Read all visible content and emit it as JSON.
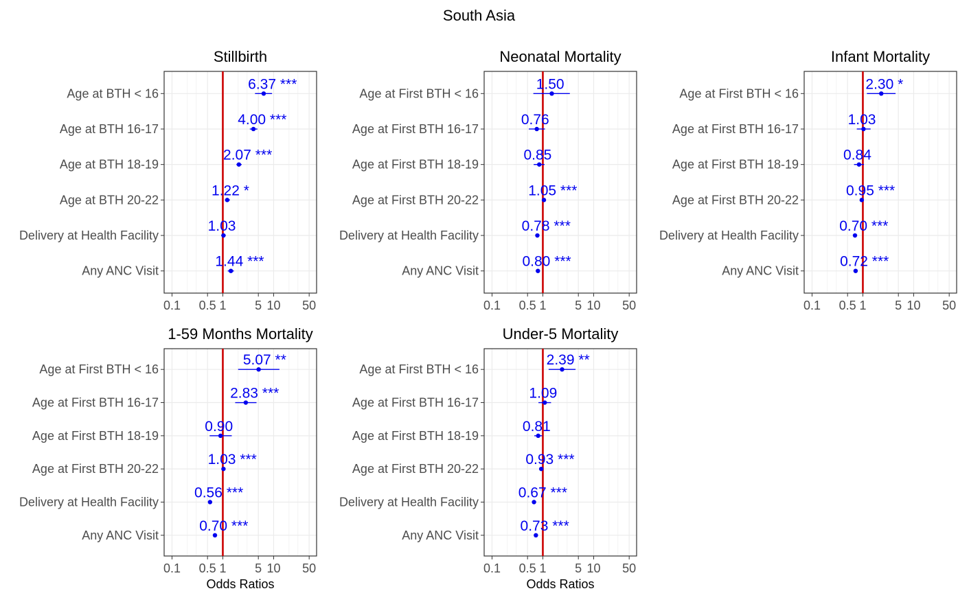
{
  "figure_title": "South Asia",
  "x_axis_label": "Odds Ratios",
  "colors": {
    "reference_line": "#cc0000",
    "estimate": "#0000ee",
    "grid": "#ebebeb",
    "text": "#4d4d4d"
  },
  "chart_data": [
    {
      "type": "scatter",
      "title": "Stillbirth",
      "xscale": "log",
      "xticks": [
        "0.1",
        "0.5",
        "1",
        "5",
        "10",
        "50"
      ],
      "reference_value": 1,
      "xlabel": "",
      "rows": [
        {
          "label": "Age at BTH < 16",
          "or": 6.37,
          "lo": 4.3,
          "hi": 9.3,
          "text": "6.37 ***"
        },
        {
          "label": "Age at BTH 16-17",
          "or": 4.0,
          "lo": 3.4,
          "hi": 4.8,
          "text": "4.00 ***"
        },
        {
          "label": "Age at BTH 18-19",
          "or": 2.07,
          "lo": 1.85,
          "hi": 2.35,
          "text": "2.07 ***"
        },
        {
          "label": "Age at BTH 20-22",
          "or": 1.22,
          "lo": 1.1,
          "hi": 1.38,
          "text": "1.22 *"
        },
        {
          "label": "Delivery at Health Facility",
          "or": 1.03,
          "lo": 0.93,
          "hi": 1.14,
          "text": "1.03"
        },
        {
          "label": "Any ANC Visit",
          "or": 1.44,
          "lo": 1.25,
          "hi": 1.65,
          "text": "1.44 ***"
        }
      ]
    },
    {
      "type": "scatter",
      "title": "Neonatal Mortality",
      "xscale": "log",
      "xticks": [
        "0.1",
        "0.5",
        "1",
        "5",
        "10",
        "50"
      ],
      "reference_value": 1,
      "xlabel": "",
      "rows": [
        {
          "label": "Age at First BTH < 16",
          "or": 1.5,
          "lo": 0.65,
          "hi": 3.4,
          "text": "1.50"
        },
        {
          "label": "Age at First BTH 16-17",
          "or": 0.76,
          "lo": 0.53,
          "hi": 1.1,
          "text": "0.76"
        },
        {
          "label": "Age at First BTH 18-19",
          "or": 0.85,
          "lo": 0.66,
          "hi": 1.08,
          "text": "0.85"
        },
        {
          "label": "Age at First BTH 20-22",
          "or": 1.05,
          "lo": 1.0,
          "hi": 1.11,
          "text": "1.05 ***"
        },
        {
          "label": "Delivery at Health Facility",
          "or": 0.78,
          "lo": 0.74,
          "hi": 0.82,
          "text": "0.78 ***"
        },
        {
          "label": "Any ANC Visit",
          "or": 0.8,
          "lo": 0.76,
          "hi": 0.84,
          "text": "0.80 ***"
        }
      ]
    },
    {
      "type": "scatter",
      "title": "Infant Mortality",
      "xscale": "log",
      "xticks": [
        "0.1",
        "0.5",
        "1",
        "5",
        "10",
        "50"
      ],
      "reference_value": 1,
      "xlabel": "",
      "rows": [
        {
          "label": "Age at First BTH < 16",
          "or": 2.3,
          "lo": 1.2,
          "hi": 4.4,
          "text": "2.30 *"
        },
        {
          "label": "Age at First BTH 16-17",
          "or": 1.03,
          "lo": 0.76,
          "hi": 1.42,
          "text": "1.03"
        },
        {
          "label": "Age at First BTH 18-19",
          "or": 0.84,
          "lo": 0.67,
          "hi": 1.05,
          "text": "0.84"
        },
        {
          "label": "Age at First BTH 20-22",
          "or": 0.95,
          "lo": 0.9,
          "hi": 1.0,
          "text": "0.95 ***"
        },
        {
          "label": "Delivery at Health Facility",
          "or": 0.7,
          "lo": 0.67,
          "hi": 0.74,
          "text": "0.70 ***"
        },
        {
          "label": "Any ANC Visit",
          "or": 0.72,
          "lo": 0.69,
          "hi": 0.76,
          "text": "0.72 ***"
        }
      ]
    },
    {
      "type": "scatter",
      "title": "1-59 Months Mortality",
      "xscale": "log",
      "xticks": [
        "0.1",
        "0.5",
        "1",
        "5",
        "10",
        "50"
      ],
      "reference_value": 1,
      "xlabel": "Odds Ratios",
      "rows": [
        {
          "label": "Age at First BTH < 16",
          "or": 5.07,
          "lo": 2.0,
          "hi": 13.0,
          "text": "5.07 **"
        },
        {
          "label": "Age at First BTH 16-17",
          "or": 2.83,
          "lo": 1.75,
          "hi": 4.6,
          "text": "2.83 ***"
        },
        {
          "label": "Age at First BTH 18-19",
          "or": 0.9,
          "lo": 0.55,
          "hi": 1.5,
          "text": "0.90"
        },
        {
          "label": "Age at First BTH 20-22",
          "or": 1.03,
          "lo": 0.96,
          "hi": 1.1,
          "text": "1.03 ***"
        },
        {
          "label": "Delivery at Health Facility",
          "or": 0.56,
          "lo": 0.52,
          "hi": 0.6,
          "text": "0.56 ***"
        },
        {
          "label": "Any ANC Visit",
          "or": 0.7,
          "lo": 0.65,
          "hi": 0.75,
          "text": "0.70 ***"
        }
      ]
    },
    {
      "type": "scatter",
      "title": "Under-5 Mortality",
      "xscale": "log",
      "xticks": [
        "0.1",
        "0.5",
        "1",
        "5",
        "10",
        "50"
      ],
      "reference_value": 1,
      "xlabel": "Odds Ratios",
      "rows": [
        {
          "label": "Age at First BTH < 16",
          "or": 2.39,
          "lo": 1.3,
          "hi": 4.4,
          "text": "2.39 **"
        },
        {
          "label": "Age at First BTH 16-17",
          "or": 1.09,
          "lo": 0.82,
          "hi": 1.45,
          "text": "1.09"
        },
        {
          "label": "Age at First BTH 18-19",
          "or": 0.81,
          "lo": 0.68,
          "hi": 0.97,
          "text": "0.81"
        },
        {
          "label": "Age at First BTH 20-22",
          "or": 0.93,
          "lo": 0.89,
          "hi": 0.97,
          "text": "0.93 ***"
        },
        {
          "label": "Delivery at Health Facility",
          "or": 0.67,
          "lo": 0.64,
          "hi": 0.7,
          "text": "0.67 ***"
        },
        {
          "label": "Any ANC Visit",
          "or": 0.73,
          "lo": 0.7,
          "hi": 0.76,
          "text": "0.73 ***"
        }
      ]
    }
  ]
}
